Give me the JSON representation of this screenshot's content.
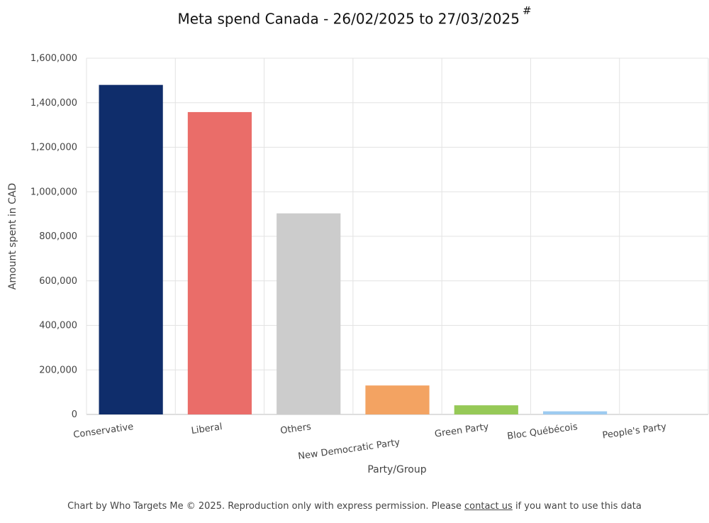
{
  "title": "Meta spend Canada - 26/02/2025 to 27/03/2025",
  "title_mark": "#",
  "footer": {
    "before": "Chart by Who Targets Me © 2025. Reproduction only with express permission. Please",
    "link": "contact us",
    "after": "if you want to use this data"
  },
  "chart_data": {
    "type": "bar",
    "title": "Meta spend Canada - 26/02/2025 to 27/03/2025",
    "xlabel": "Party/Group",
    "ylabel": "Amount spent in CAD",
    "ylim": [
      0,
      1600000
    ],
    "yticks": [
      0,
      200000,
      400000,
      600000,
      800000,
      1000000,
      1200000,
      1400000,
      1600000
    ],
    "ytick_labels": [
      "0",
      "200,000",
      "400,000",
      "600,000",
      "800,000",
      "1,000,000",
      "1,200,000",
      "1,400,000",
      "1,600,000"
    ],
    "grid": true,
    "categories": [
      "Conservative",
      "Liberal",
      "Others",
      "New Democratic Party",
      "Green Party",
      "Bloc Québécois",
      "People's Party"
    ],
    "values": [
      1480000,
      1358000,
      903000,
      130000,
      41000,
      14000,
      0
    ],
    "colors": [
      "#0f2d6b",
      "#ea6d69",
      "#cccccc",
      "#f3a362",
      "#96c957",
      "#9dcbf0",
      "#b0b0b0"
    ]
  }
}
